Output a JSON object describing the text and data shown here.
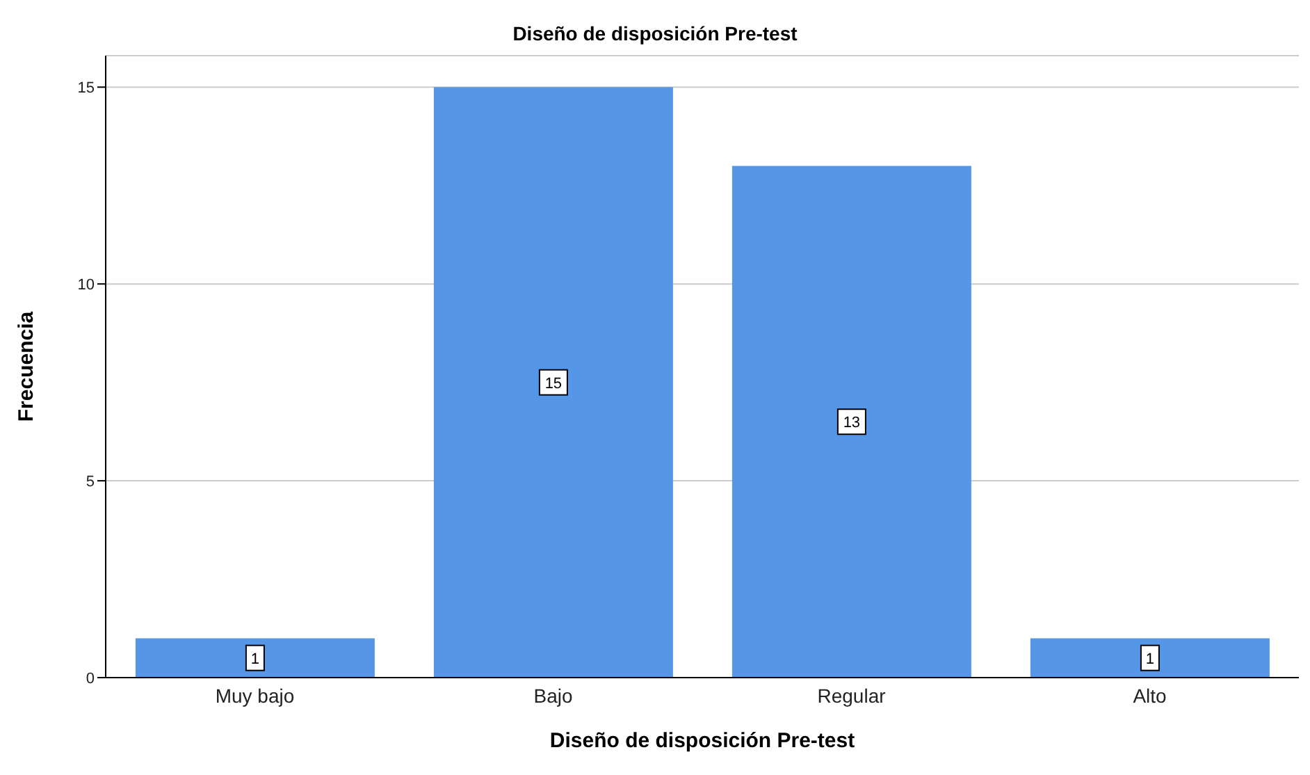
{
  "chart_data": {
    "type": "bar",
    "title": "Diseño de disposición Pre-test",
    "xlabel": "Diseño de disposición Pre-test",
    "ylabel": "Frecuencia",
    "categories": [
      "Muy bajo",
      "Bajo",
      "Regular",
      "Alto"
    ],
    "values": [
      1,
      15,
      13,
      1
    ],
    "color": "#5596e6",
    "ylim": [
      0,
      15.8
    ],
    "yticks": [
      0,
      5,
      10,
      15
    ],
    "grid": "y",
    "data_labels": true
  }
}
